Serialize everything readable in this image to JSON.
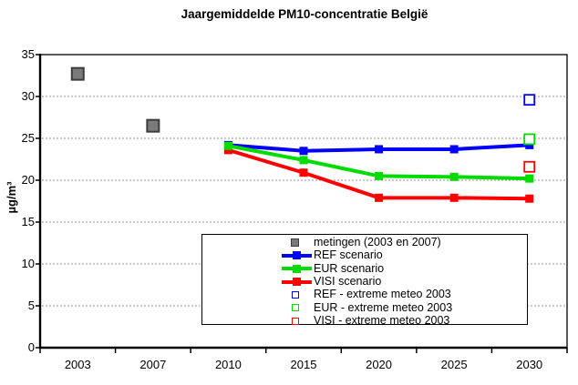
{
  "chart_data": {
    "type": "line",
    "title": "Jaargemiddelde PM10-concentratie België",
    "ylabel": "µg/m³",
    "ylim": [
      0,
      35
    ],
    "yticks": [
      0,
      5,
      10,
      15,
      20,
      25,
      30,
      35
    ],
    "grid_at": [
      5,
      10,
      15,
      20,
      25,
      30
    ],
    "grid_color": "#969696",
    "axis_color": "#000000",
    "categories": [
      "2003",
      "2007",
      "2010",
      "2015",
      "2020",
      "2025",
      "2030"
    ],
    "legend_position": "inside-bottom-center",
    "series": [
      {
        "name": "metingen (2003 en 2007)",
        "kind": "scatter",
        "marker": "filled-square",
        "color": "#7a7a7a",
        "border_color": "#3c3c3c",
        "x": [
          "2003",
          "2007"
        ],
        "values": [
          32.7,
          26.5
        ]
      },
      {
        "name": "REF scenario",
        "kind": "line",
        "marker": "filled-square",
        "color": "#0000ff",
        "x": [
          "2010",
          "2015",
          "2020",
          "2025",
          "2030"
        ],
        "values": [
          24.2,
          23.5,
          23.7,
          23.7,
          24.2
        ]
      },
      {
        "name": "EUR scenario",
        "kind": "line",
        "marker": "filled-square",
        "color": "#00dc00",
        "x": [
          "2010",
          "2015",
          "2020",
          "2025",
          "2030"
        ],
        "values": [
          24.1,
          22.4,
          20.5,
          20.4,
          20.2
        ]
      },
      {
        "name": "VISI scenario",
        "kind": "line",
        "marker": "filled-square",
        "color": "#ff0000",
        "x": [
          "2010",
          "2015",
          "2020",
          "2025",
          "2030"
        ],
        "values": [
          23.6,
          20.9,
          17.9,
          17.9,
          17.8
        ]
      },
      {
        "name": "REF - extreme meteo 2003",
        "kind": "scatter",
        "marker": "open-square",
        "color": "#0000ff",
        "x": [
          "2030"
        ],
        "values": [
          29.6
        ]
      },
      {
        "name": "EUR - extreme meteo 2003",
        "kind": "scatter",
        "marker": "open-square",
        "color": "#00dc00",
        "x": [
          "2030"
        ],
        "values": [
          24.9
        ]
      },
      {
        "name": "VISI - extreme meteo 2003",
        "kind": "scatter",
        "marker": "open-square",
        "color": "#ff0000",
        "x": [
          "2030"
        ],
        "values": [
          21.6
        ]
      }
    ]
  }
}
